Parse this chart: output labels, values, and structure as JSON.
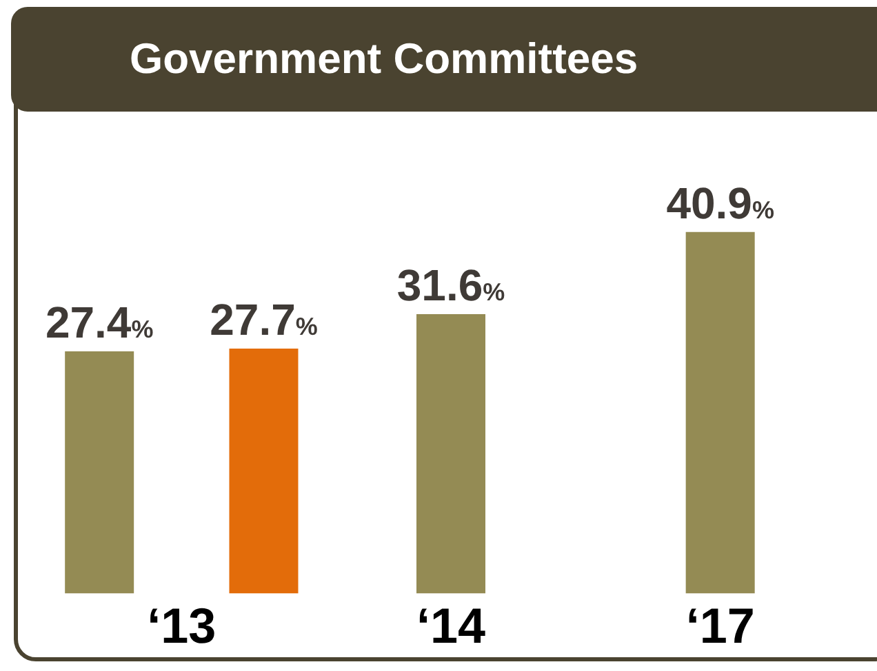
{
  "chart_data": {
    "type": "bar",
    "title": "Government Committees",
    "categories": [
      "‘13",
      "‘14",
      "‘17"
    ],
    "series": [
      {
        "color": "#948b54",
        "values": [
          27.4,
          31.6,
          40.9
        ],
        "value_labels": [
          "27.4%",
          "31.6%",
          "40.9%"
        ]
      },
      {
        "color": "#e36c0a",
        "values": [
          27.7,
          null,
          null
        ],
        "value_labels": [
          "27.7%",
          null,
          null
        ]
      }
    ],
    "legend": false,
    "grid": false
  }
}
